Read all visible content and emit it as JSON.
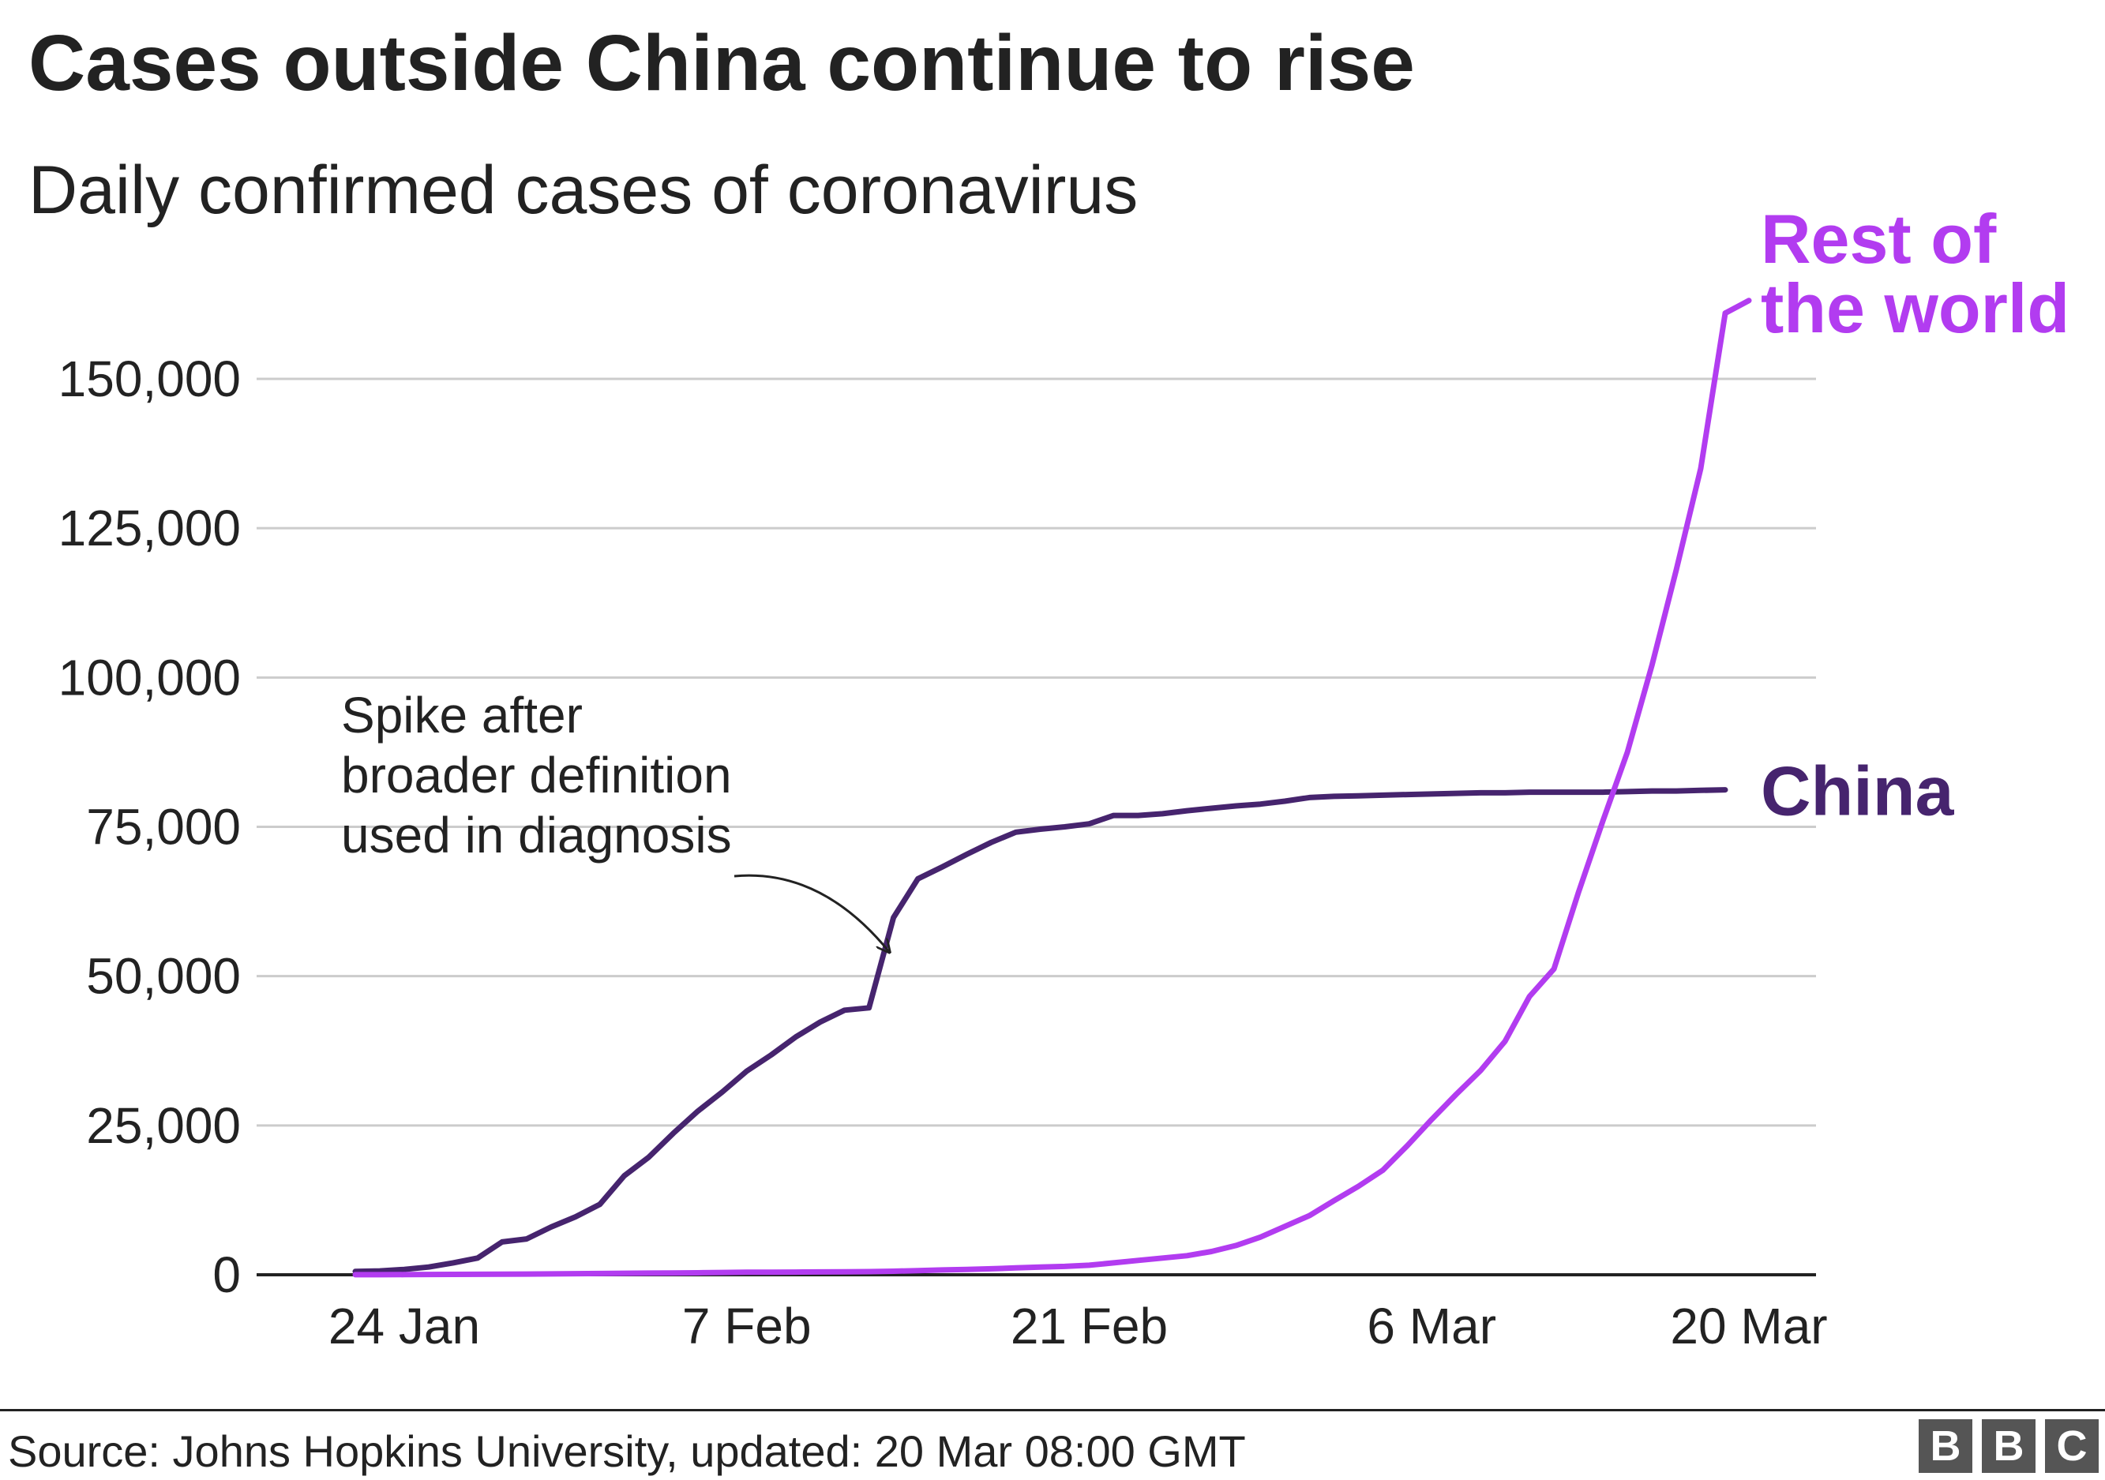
{
  "title": "Cases outside China continue to rise",
  "subtitle": "Daily confirmed cases of coronavirus",
  "source": "Source: Johns Hopkins University, updated: 20 Mar 08:00 GMT",
  "logo": {
    "letters": [
      "B",
      "B",
      "C"
    ],
    "color": "#555555"
  },
  "colors": {
    "china": "#46246e",
    "rest_of_world": "#b23cf0",
    "grid": "#cccccc",
    "text": "#222222"
  },
  "chart_data": {
    "type": "line",
    "title": "Cases outside China continue to rise",
    "subtitle": "Daily confirmed cases of coronavirus",
    "xlabel": "",
    "ylabel": "",
    "x_range": [
      0,
      56
    ],
    "ylim": [
      0,
      150000
    ],
    "y_ticks": [
      0,
      25000,
      50000,
      75000,
      100000,
      125000,
      150000
    ],
    "y_tick_labels": [
      "0",
      "25,000",
      "50,000",
      "75,000",
      "100,000",
      "125,000",
      "150,000"
    ],
    "x_ticks": [
      2,
      16,
      30,
      44,
      58
    ],
    "x_tick_labels": [
      "24 Jan",
      "7 Feb",
      "21 Feb",
      "6 Mar",
      "20 Mar"
    ],
    "grid": true,
    "series": [
      {
        "name": "China",
        "label": "China",
        "color": "#46246e",
        "x": [
          0,
          1,
          2,
          3,
          4,
          5,
          6,
          7,
          8,
          9,
          10,
          11,
          12,
          13,
          14,
          15,
          16,
          17,
          18,
          19,
          20,
          21,
          22,
          23,
          24,
          25,
          26,
          27,
          28,
          29,
          30,
          31,
          32,
          33,
          34,
          35,
          36,
          37,
          38,
          39,
          40,
          41,
          42,
          43,
          44,
          45,
          46,
          47,
          48,
          49,
          50,
          51,
          52,
          53,
          54,
          55,
          56
        ],
        "y": [
          550,
          650,
          900,
          1300,
          2000,
          2800,
          5500,
          6000,
          8000,
          9700,
          11800,
          16600,
          19700,
          23700,
          27400,
          30600,
          34100,
          36800,
          39800,
          42300,
          44300,
          44700,
          59800,
          66300,
          68300,
          70400,
          72400,
          74100,
          74600,
          75000,
          75500,
          76900,
          76900,
          77200,
          77700,
          78100,
          78500,
          78800,
          79300,
          79900,
          80100,
          80200,
          80300,
          80400,
          80500,
          80600,
          80700,
          80700,
          80800,
          80800,
          80800,
          80800,
          80900,
          81000,
          81000,
          81100,
          81200
        ]
      },
      {
        "name": "Rest of the world",
        "label": [
          "Rest of",
          "the world"
        ],
        "color": "#b23cf0",
        "x": [
          0,
          1,
          2,
          3,
          4,
          5,
          6,
          7,
          8,
          9,
          10,
          11,
          12,
          13,
          14,
          15,
          16,
          17,
          18,
          19,
          20,
          21,
          22,
          23,
          24,
          25,
          26,
          27,
          28,
          29,
          30,
          31,
          32,
          33,
          34,
          35,
          36,
          37,
          38,
          39,
          40,
          41,
          42,
          43,
          44,
          45,
          46,
          47,
          48,
          49,
          50,
          51,
          52,
          53,
          54,
          55,
          56
        ],
        "y": [
          10,
          15,
          30,
          50,
          70,
          80,
          100,
          120,
          150,
          180,
          210,
          250,
          280,
          310,
          330,
          380,
          420,
          440,
          450,
          480,
          500,
          530,
          600,
          700,
          800,
          900,
          1000,
          1150,
          1300,
          1400,
          1600,
          2000,
          2400,
          2800,
          3200,
          3900,
          4900,
          6300,
          8100,
          9900,
          12400,
          14800,
          17500,
          21600,
          26000,
          30200,
          34200,
          39100,
          46600,
          51200,
          64000,
          76000,
          87500,
          102000,
          118000,
          135000,
          161000
        ]
      }
    ],
    "annotations": [
      {
        "text": [
          "Spike after",
          "broader definition",
          "used in diagnosis"
        ],
        "target_x": 22,
        "target_y": 54000
      }
    ],
    "legend": "direct labels at line ends"
  }
}
